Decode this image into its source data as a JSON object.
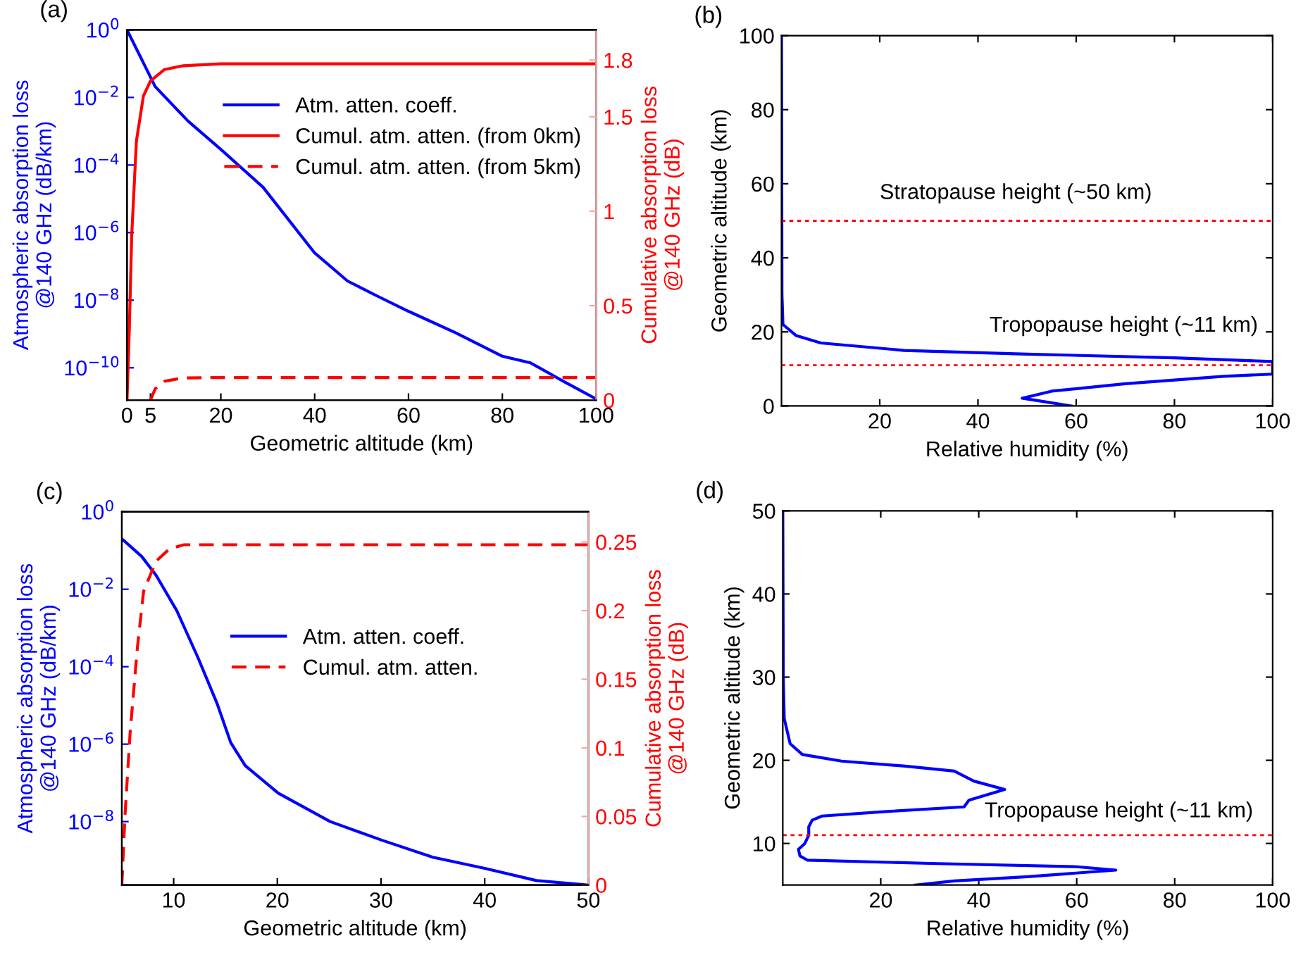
{
  "chart_data": [
    {
      "type": "line",
      "title": "(a)",
      "xlabel": "Geometric altitude (km)",
      "ylabel": "Atmospheric absorption loss\n@140 GHz (dB/km)",
      "y2label": "Cumulative absorption loss\n@140 GHz (dB)",
      "log": "y",
      "legend": "top right",
      "xlim": [
        0,
        100
      ],
      "xticks": [
        0,
        5,
        20,
        40,
        60,
        80,
        100
      ],
      "ylim": [
        1.1e-11,
        1
      ],
      "yticks": [
        {
          "value": 1e-10,
          "label": "10$^{−10}$"
        },
        {
          "value": 1e-08,
          "label": "10$^{−8}$"
        },
        {
          "value": 1e-06,
          "label": "10$^{−6}$"
        },
        {
          "value": 0.0001,
          "label": "10$^{−4}$"
        },
        {
          "value": 0.01,
          "label": "10$^{−2}$"
        },
        {
          "value": 1,
          "label": "10$^{0}$"
        }
      ],
      "y2lim": [
        0,
        1.96
      ],
      "y2ticks": [
        0,
        0.5,
        1,
        1.5,
        1.8
      ],
      "series": [
        {
          "name": "Atm. atten. coeff.",
          "color": "#0000ff",
          "line_style": "solid",
          "x": [
            0,
            6,
            13,
            20,
            29,
            40,
            47,
            53,
            60,
            70,
            80,
            86,
            93,
            100
          ],
          "values": [
            1,
            0.021,
            0.002,
            0.00029,
            2.2e-05,
            2.5e-07,
            3.7e-08,
            1.4e-08,
            4.7e-09,
            1.1e-09,
            2.2e-10,
            1.4e-10,
            4e-11,
            1.2e-11
          ]
        },
        {
          "name": "Cumul. atm. atten. (from 0km)",
          "color": "#ff0000",
          "axis": "y2",
          "line_style": "solid",
          "x": [
            0,
            0.5,
            1,
            2,
            3.5,
            5,
            8,
            12,
            20,
            100
          ],
          "values": [
            0,
            0.38,
            0.87,
            1.37,
            1.61,
            1.69,
            1.75,
            1.77,
            1.78,
            1.78
          ]
        },
        {
          "name": "Cumul. atm. atten. (from 5km)",
          "color": "#ff0000",
          "axis": "y2",
          "line_style": "dashed",
          "x": [
            5,
            6,
            8,
            12,
            20,
            100
          ],
          "values": [
            0,
            0.06,
            0.1,
            0.118,
            0.12,
            0.12
          ]
        }
      ]
    },
    {
      "type": "line",
      "title": "(b)",
      "xlabel": "Relative humidity (%)",
      "ylabel": "Geometric altitude (km)",
      "xlim": [
        0,
        100
      ],
      "xticks": [
        20,
        40,
        60,
        80,
        100
      ],
      "ylim": [
        0,
        100
      ],
      "yticks": [
        0,
        20,
        40,
        60,
        80,
        100
      ],
      "series": [
        {
          "color": "#0000ff",
          "line_style": "solid",
          "x": [
            59,
            49,
            55,
            70,
            90,
            100,
            100,
            80,
            50,
            25,
            8,
            3,
            0.3,
            0.1,
            0
          ],
          "values": [
            0,
            2.1,
            4,
            6,
            8,
            8.6,
            12,
            13,
            14,
            15,
            17,
            19,
            22,
            30,
            100
          ]
        }
      ],
      "ref_lines": [
        {
          "axis": "y",
          "value": 50,
          "color": "#ff0000",
          "line_style": "dotted",
          "label": "Stratopause height (~50 km)"
        },
        {
          "axis": "y",
          "value": 11,
          "color": "#ff0000",
          "line_style": "dotted",
          "label": "Tropopause height (~11 km)"
        }
      ]
    },
    {
      "type": "line",
      "title": "(c)",
      "xlabel": "Geometric altitude (km)",
      "ylabel": "Atmospheric absorption loss\n@140 GHz (dB/km)",
      "y2label": "Cumulative absorption loss\n@140 GHz (dB)",
      "log": "y",
      "legend": "center",
      "xlim": [
        5,
        50
      ],
      "xticks": [
        10,
        20,
        30,
        40,
        50
      ],
      "ylim": [
        2.3e-10,
        1
      ],
      "yticks": [
        {
          "value": 1e-08,
          "label": "10$^{−8}$"
        },
        {
          "value": 1e-06,
          "label": "10$^{−6}$"
        },
        {
          "value": 0.0001,
          "label": "10$^{−4}$"
        },
        {
          "value": 0.01,
          "label": "10$^{−2}$"
        },
        {
          "value": 1,
          "label": "10$^{0}$"
        }
      ],
      "y2lim": [
        0,
        0.272
      ],
      "y2ticks": [
        0,
        0.05,
        0.1,
        0.15,
        0.2,
        0.25
      ],
      "series": [
        {
          "name": "Atm. atten. coeff.",
          "color": "#0000ff",
          "line_style": "solid",
          "x": [
            5,
            6.9,
            8.3,
            10.3,
            12.35,
            14.2,
            15.5,
            16.9,
            20.1,
            25.1,
            30.1,
            35,
            40,
            45,
            50
          ],
          "values": [
            0.2,
            0.071,
            0.023,
            0.0028,
            0.00017,
            1.1e-05,
            1.1e-06,
            2.8e-07,
            5.4e-08,
            1e-08,
            3.3e-09,
            1.2e-09,
            6.2e-10,
            3e-10,
            2.3e-10
          ]
        },
        {
          "name": "Cumul. atm. atten.",
          "color": "#ff0000",
          "axis": "y2",
          "line_style": "dashed",
          "x": [
            5,
            5.3,
            5.8,
            6.5,
            7.1,
            8.3,
            9.6,
            11,
            50
          ],
          "values": [
            0,
            0.05,
            0.111,
            0.173,
            0.214,
            0.236,
            0.245,
            0.248,
            0.248
          ]
        }
      ]
    },
    {
      "type": "line",
      "title": "(d)",
      "xlabel": "Relative humidity (%)",
      "ylabel": "Geometric altitude (km)",
      "xlim": [
        0,
        100
      ],
      "xticks": [
        20,
        40,
        60,
        80,
        100
      ],
      "ylim": [
        5,
        50
      ],
      "yticks": [
        10,
        20,
        30,
        40,
        50
      ],
      "series": [
        {
          "color": "#0000ff",
          "line_style": "solid",
          "x": [
            27,
            35,
            50,
            68,
            60,
            30,
            5,
            3.5,
            3.2,
            4.5,
            5.3,
            5.3,
            6,
            8,
            20,
            37,
            38,
            45.3,
            39,
            35,
            25,
            12,
            4,
            1.5,
            0.3,
            0.1,
            0
          ],
          "values": [
            5,
            5.5,
            6,
            6.8,
            7.2,
            7.6,
            8,
            8.5,
            9.3,
            10,
            11,
            12,
            12.8,
            13.3,
            13.8,
            14.4,
            15.2,
            16.5,
            17.5,
            18.7,
            19.3,
            19.9,
            20.7,
            22,
            25,
            30,
            50
          ]
        }
      ],
      "ref_lines": [
        {
          "axis": "y",
          "value": 11,
          "color": "#ff0000",
          "line_style": "dotted",
          "label": "Tropopause height (~11 km)"
        }
      ]
    }
  ]
}
